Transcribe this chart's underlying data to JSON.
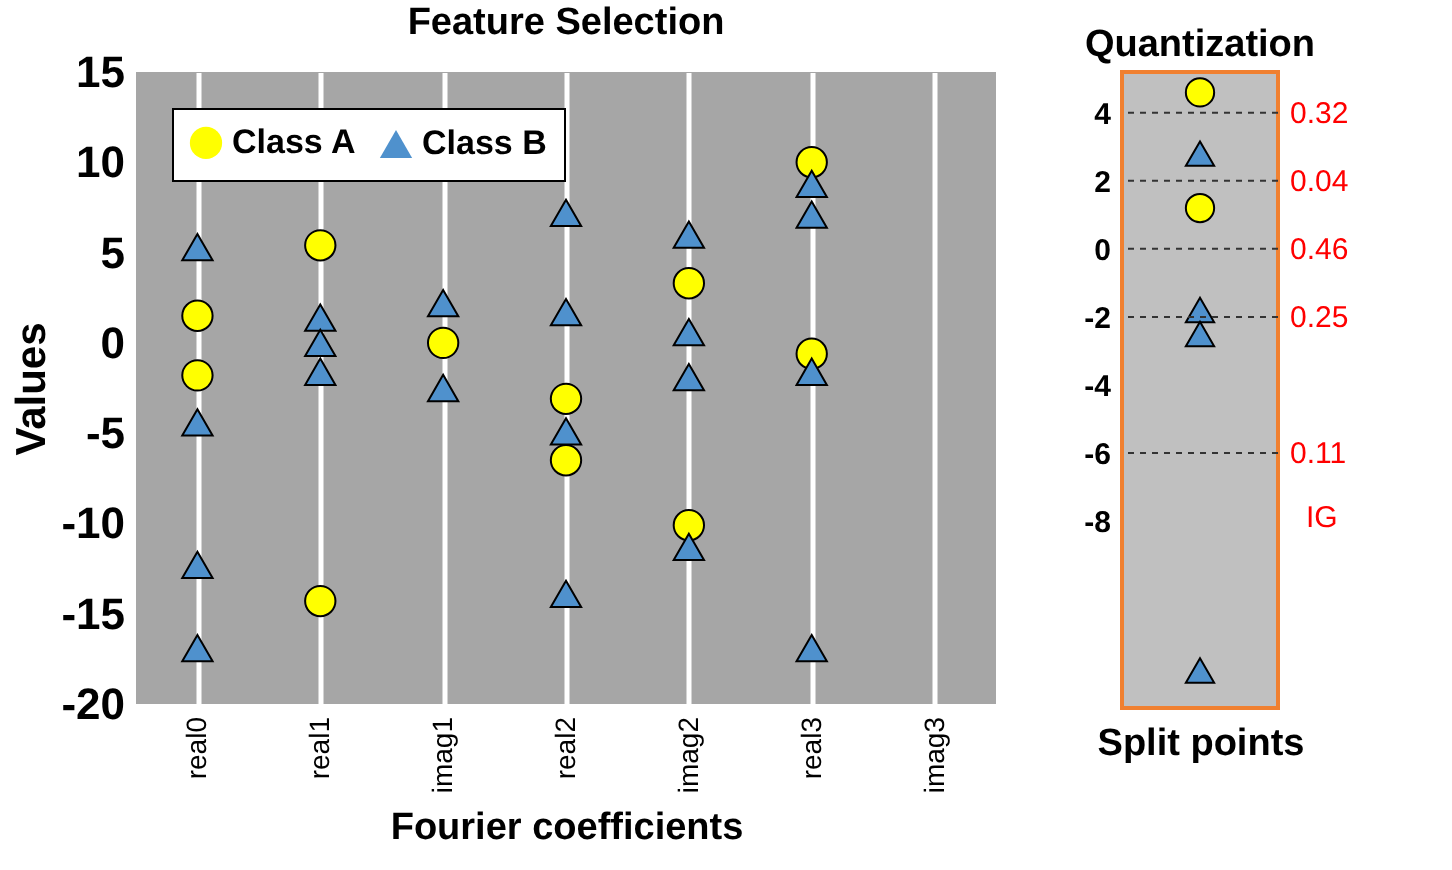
{
  "chart_data": [
    {
      "type": "scatter",
      "title": "Feature Selection",
      "xlabel": "Fourier coefficients",
      "ylabel": "Values",
      "categories": [
        "real0",
        "real1",
        "imag1",
        "real2",
        "imag2",
        "real3",
        "imag3"
      ],
      "series": [
        {
          "name": "Class A",
          "color": "#ffff00",
          "marker": "circle",
          "x": [
            "real0",
            "real0",
            "real1",
            "real1",
            "imag1",
            "real2",
            "real2",
            "imag2",
            "imag2",
            "real3",
            "real3"
          ],
          "values": [
            1.5,
            -1.8,
            5.4,
            -14.3,
            0,
            -3.1,
            -6.5,
            3.3,
            -10.1,
            10,
            -0.6
          ]
        },
        {
          "name": "Class B",
          "color": "#4f91cd",
          "marker": "triangle",
          "x": [
            "real0",
            "real0",
            "real0",
            "real0",
            "real1",
            "real1",
            "real1",
            "imag1",
            "imag1",
            "real2",
            "real2",
            "real2",
            "real2",
            "imag2",
            "imag2",
            "imag2",
            "imag2",
            "real3",
            "real3",
            "real3",
            "real3"
          ],
          "values": [
            5.3,
            -4.4,
            -12.3,
            -16.9,
            1.4,
            0,
            -1.6,
            2.2,
            -2.5,
            7.2,
            1.7,
            -4.9,
            -13.9,
            6,
            0.6,
            -1.9,
            -11.3,
            8.8,
            7.1,
            -1.6,
            -16.9
          ]
        }
      ],
      "ylim": [
        -20,
        15
      ],
      "yticks": [
        -20,
        -15,
        -10,
        -5,
        0,
        5,
        10,
        15
      ],
      "grid": "x",
      "legend": "top left"
    },
    {
      "type": "scatter",
      "title": "Quantization",
      "xlabel": "Split points",
      "categories": [
        null
      ],
      "series": [
        {
          "color": "#ffff00",
          "marker": "circle",
          "x": [
            null,
            null
          ],
          "values": [
            4.6,
            1.2
          ]
        },
        {
          "color": "#4f91cd",
          "marker": "triangle",
          "x": [
            null,
            null,
            null,
            null
          ],
          "values": [
            2.8,
            -1.8,
            -2.5,
            -12.4
          ]
        }
      ],
      "ylim": [
        -13.5,
        5.2
      ],
      "yticks": [
        -8,
        -6,
        -4,
        -2,
        0,
        2,
        4
      ],
      "tick_labels": "y",
      "grid": false,
      "legend": false,
      "ref_lines": [
        {
          "axis": "y",
          "value": 4,
          "color": "#333333",
          "line_style": "dashed"
        },
        {
          "axis": "y",
          "value": 2,
          "color": "#333333",
          "line_style": "dashed"
        },
        {
          "axis": "y",
          "value": 0,
          "color": "#333333",
          "line_style": "dashed"
        },
        {
          "axis": "y",
          "value": -2,
          "color": "#333333",
          "line_style": "dashed"
        },
        {
          "axis": "y",
          "value": -6,
          "color": "#333333",
          "line_style": "dashed"
        }
      ],
      "annotations": [
        "0.32",
        "0.04",
        "0.46",
        "0.25",
        "0.11",
        "IG"
      ]
    }
  ]
}
